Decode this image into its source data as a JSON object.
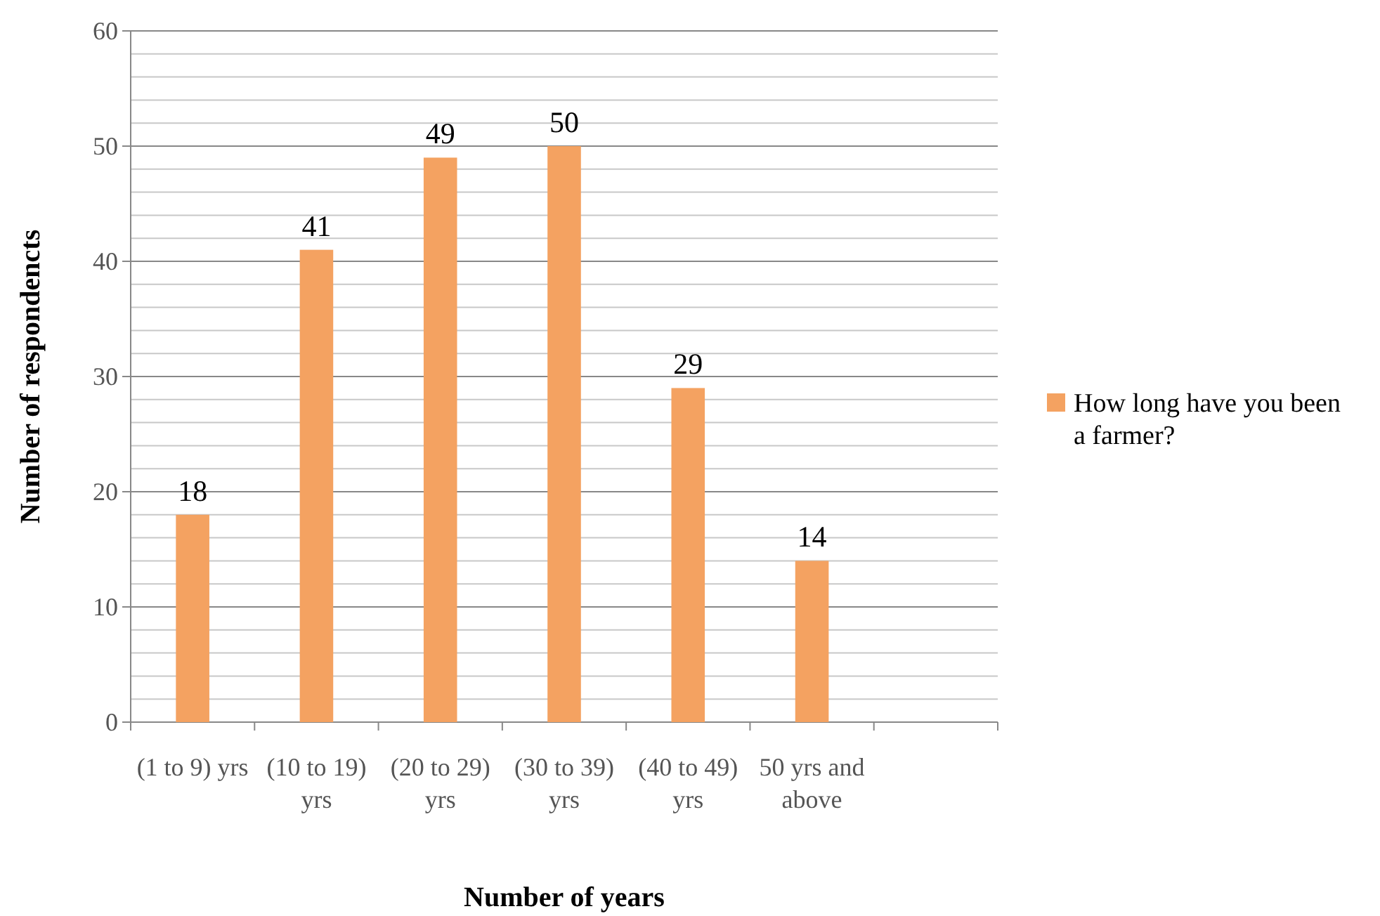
{
  "chart_data": {
    "type": "bar",
    "xlabel": "Number of years",
    "ylabel": "Number of respondencts",
    "categories": [
      "(1 to 9) yrs",
      "(10 to 19) yrs",
      "(20 to 29) yrs",
      "(30 to 39) yrs",
      "(40 to 49) yrs",
      "50 yrs and above",
      null
    ],
    "series": [
      {
        "name": "How long have you been a farmer?",
        "color": "#f4a261",
        "values": [
          18,
          41,
          49,
          50,
          29,
          14,
          null
        ]
      }
    ],
    "ylim": [
      0,
      60
    ],
    "yticks": [
      0,
      {
        "value": 2,
        "label": null
      },
      {
        "value": 4,
        "label": null
      },
      {
        "value": 6,
        "label": null
      },
      {
        "value": 8,
        "label": null
      },
      10,
      {
        "value": 12,
        "label": null
      },
      {
        "value": 14,
        "label": null
      },
      {
        "value": 16,
        "label": null
      },
      {
        "value": 18,
        "label": null
      },
      20,
      {
        "value": 22,
        "label": null
      },
      {
        "value": 24,
        "label": null
      },
      {
        "value": 26,
        "label": null
      },
      {
        "value": 28,
        "label": null
      },
      30,
      {
        "value": 32,
        "label": null
      },
      {
        "value": 34,
        "label": null
      },
      {
        "value": 36,
        "label": null
      },
      {
        "value": 38,
        "label": null
      },
      40,
      {
        "value": 42,
        "label": null
      },
      {
        "value": 44,
        "label": null
      },
      {
        "value": 46,
        "label": null
      },
      {
        "value": 48,
        "label": null
      },
      50,
      {
        "value": 52,
        "label": null
      },
      {
        "value": 54,
        "label": null
      },
      {
        "value": 56,
        "label": null
      },
      {
        "value": 58,
        "label": null
      },
      60
    ],
    "grid": "y",
    "legend": "right",
    "data_labels": true
  }
}
